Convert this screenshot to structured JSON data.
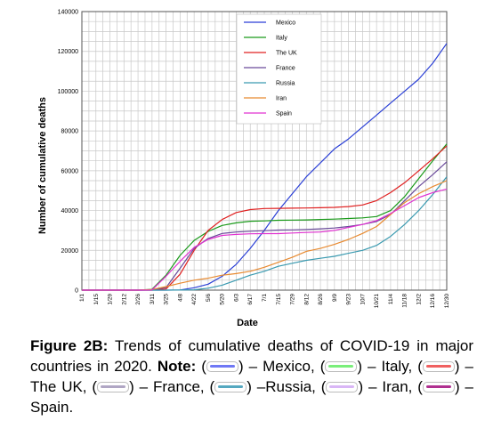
{
  "chart_data": {
    "type": "line",
    "xlabel": "Date",
    "ylabel": "Number of cumulative deaths",
    "ylim": [
      0,
      140000
    ],
    "yticks": [
      "0",
      "20000",
      "40000",
      "60000",
      "80000",
      "100000",
      "120000",
      "140000"
    ],
    "x": [
      "1/1",
      "1/15",
      "1/29",
      "2/12",
      "2/26",
      "3/11",
      "3/25",
      "4/8",
      "4/22",
      "5/6",
      "5/20",
      "6/3",
      "6/17",
      "7/1",
      "7/15",
      "7/29",
      "8/12",
      "8/26",
      "9/9",
      "9/23",
      "10/7",
      "10/21",
      "11/4",
      "11/18",
      "12/2",
      "12/16",
      "12/30"
    ],
    "grid": true,
    "legend_position": "top-center",
    "series": [
      {
        "name": "Mexico",
        "color": "#2a3fd6",
        "values": [
          0,
          0,
          0,
          0,
          0,
          0,
          0,
          100,
          1200,
          3000,
          7000,
          13000,
          21000,
          30000,
          40000,
          48500,
          57000,
          64000,
          71000,
          76000,
          82000,
          88000,
          94000,
          100000,
          106000,
          114000,
          124000
        ]
      },
      {
        "name": "Italy",
        "color": "#1a9a1a",
        "values": [
          0,
          0,
          0,
          0,
          0,
          400,
          7500,
          17500,
          25000,
          29500,
          32500,
          33800,
          34600,
          34800,
          35100,
          35200,
          35300,
          35500,
          35700,
          36000,
          36300,
          37000,
          40000,
          47000,
          56000,
          65000,
          73500
        ]
      },
      {
        "name": "The UK",
        "color": "#e02020",
        "values": [
          0,
          0,
          0,
          0,
          0,
          10,
          600,
          8000,
          20000,
          30000,
          35500,
          39000,
          40500,
          41000,
          41100,
          41200,
          41300,
          41400,
          41600,
          42000,
          42800,
          45000,
          49000,
          54000,
          60000,
          66000,
          72500
        ]
      },
      {
        "name": "France",
        "color": "#6a4a9a",
        "values": [
          0,
          0,
          0,
          0,
          0,
          50,
          1300,
          11000,
          21000,
          26000,
          28500,
          29200,
          29600,
          29900,
          30200,
          30300,
          30500,
          30800,
          31200,
          32000,
          33000,
          34500,
          38000,
          45000,
          52000,
          58000,
          64500
        ]
      },
      {
        "name": "Russia",
        "color": "#3a9ab0",
        "values": [
          0,
          0,
          0,
          0,
          0,
          0,
          0,
          50,
          200,
          1000,
          2500,
          5000,
          7500,
          9500,
          12000,
          13500,
          15000,
          16000,
          17000,
          18500,
          20000,
          22500,
          27000,
          33000,
          40000,
          48000,
          57000
        ]
      },
      {
        "name": "Iran",
        "color": "#e88a30",
        "values": [
          0,
          0,
          0,
          0,
          0,
          300,
          1800,
          3500,
          5000,
          6000,
          7500,
          8300,
          9500,
          11500,
          14000,
          16500,
          19500,
          21000,
          23000,
          25500,
          28500,
          32000,
          38000,
          44000,
          48500,
          52000,
          55000
        ]
      },
      {
        "name": "Spain",
        "color": "#e030d0",
        "values": [
          0,
          0,
          0,
          0,
          0,
          100,
          7000,
          14500,
          21500,
          25500,
          27500,
          28000,
          28300,
          28400,
          28400,
          28700,
          29000,
          29200,
          30000,
          31500,
          33000,
          35000,
          38500,
          42500,
          46500,
          49000,
          50800
        ]
      }
    ]
  },
  "caption": {
    "figure_label": "Figure 2B:",
    "text1": " Trends of cumulative deaths of COVID-19 in major countries in 2020. ",
    "note_label": "Note:",
    "items": [
      {
        "name": "Mexico",
        "color": "#6f78f5",
        "prefix": " (",
        "suffix": ") – Mexico, ("
      },
      {
        "name": "Italy",
        "color": "#7aee7a",
        "prefix": "",
        "suffix": ") – Italy, ("
      },
      {
        "name": "The UK",
        "color": "#f06060",
        "prefix": "",
        "suffix": ") – The UK, ("
      },
      {
        "name": "France",
        "color": "#b0a6c4",
        "prefix": "",
        "suffix": ") – France, ("
      },
      {
        "name": "Russia",
        "color": "#55a8c0",
        "prefix": "",
        "suffix": ") –Russia, ("
      },
      {
        "name": "Iran",
        "color": "#d9b6f6",
        "prefix": "",
        "suffix": ") – Iran, ("
      },
      {
        "name": "Spain",
        "color": "#b03090",
        "prefix": "",
        "suffix": ") – Spain."
      }
    ]
  }
}
